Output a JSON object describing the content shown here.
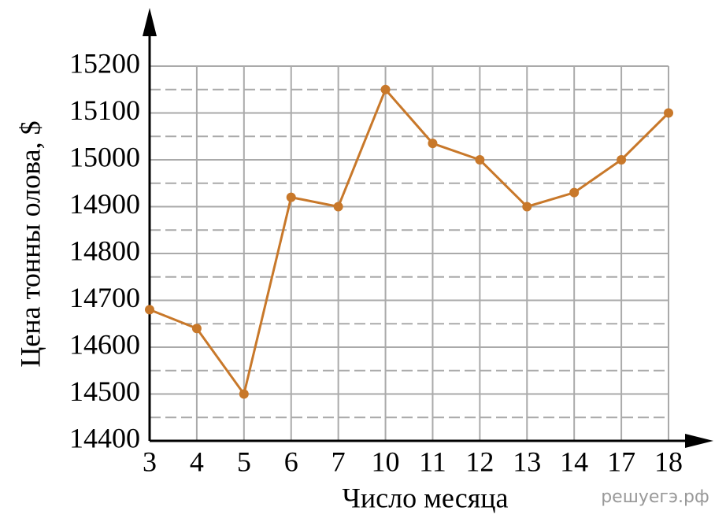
{
  "chart_data": {
    "type": "line",
    "ylabel": "Цена тонны олова, $",
    "xlabel": "Число месяца",
    "watermark": "решуегэ.рф",
    "categories": [
      "3",
      "4",
      "5",
      "6",
      "7",
      "10",
      "11",
      "12",
      "13",
      "14",
      "17",
      "18"
    ],
    "series": [
      {
        "color": "#c8782a",
        "values": [
          14680,
          14640,
          14500,
          14920,
          14900,
          15150,
          15035,
          15000,
          14900,
          14930,
          15000,
          15100
        ]
      }
    ],
    "ylim": [
      14400,
      15200
    ],
    "yticks": [
      14400,
      14500,
      14600,
      14700,
      14800,
      14900,
      15000,
      15100,
      15200
    ],
    "minor_yticks": [
      14450,
      14550,
      14650,
      14750,
      14850,
      14950,
      15050,
      15150
    ],
    "grid": true
  }
}
